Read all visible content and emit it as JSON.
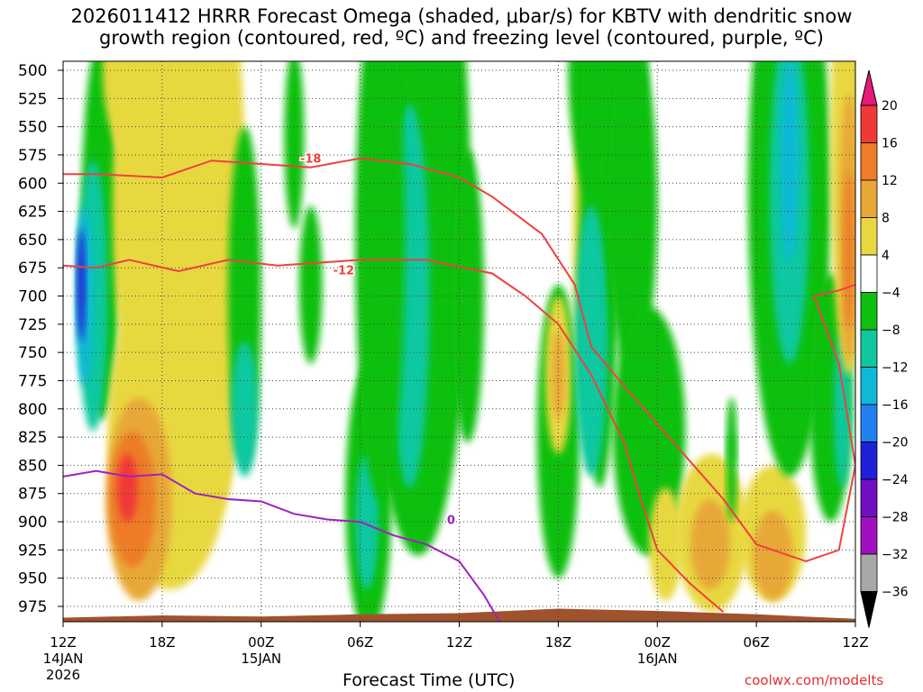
{
  "title": {
    "line1": "2026011412 HRRR Forecast Omega (shaded, μbar/s) for KBTV with dendritic snow",
    "line2": "growth region (contoured, red, ºC) and freezing level (contoured, purple, ºC)"
  },
  "xaxis_title": "Forecast Time (UTC)",
  "credit": "coolwx.com/modelts",
  "chart_data": {
    "type": "heatmap",
    "model": "HRRR",
    "init": "2026011412",
    "site": "KBTV",
    "variable": "Omega",
    "units": "μbar/s",
    "x_forecast_hours_range": [
      0,
      48
    ],
    "x_ticks": [
      {
        "hour": 0,
        "label": "12Z",
        "date": "14JAN",
        "year": "2026"
      },
      {
        "hour": 6,
        "label": "18Z"
      },
      {
        "hour": 12,
        "label": "00Z",
        "date": "15JAN"
      },
      {
        "hour": 18,
        "label": "06Z"
      },
      {
        "hour": 24,
        "label": "12Z"
      },
      {
        "hour": 30,
        "label": "18Z"
      },
      {
        "hour": 36,
        "label": "00Z",
        "date": "16JAN"
      },
      {
        "hour": 42,
        "label": "06Z"
      },
      {
        "hour": 48,
        "label": "12Z"
      }
    ],
    "y_pressure_levels_hPa": [
      500,
      525,
      550,
      575,
      600,
      625,
      650,
      675,
      700,
      725,
      750,
      775,
      800,
      825,
      850,
      875,
      900,
      925,
      950,
      975
    ],
    "y_range_hPa": [
      500,
      990
    ],
    "colorbar": {
      "levels": [
        20,
        16,
        12,
        8,
        4,
        -4,
        -8,
        -12,
        -16,
        -20,
        -24,
        -28,
        -32,
        -36
      ],
      "label_values": [
        "20",
        "16",
        "12",
        "8",
        "4",
        "−4",
        "−8",
        "−12",
        "−16",
        "−20",
        "−24",
        "−28",
        "−32",
        "−36"
      ],
      "colors": [
        "#e8187a",
        "#f03838",
        "#ee7c28",
        "#e8a838",
        "#e8d840",
        "#ffffff",
        "#10c010",
        "#10c8a0",
        "#10b8d8",
        "#2080f0",
        "#2020d8",
        "#7010c0",
        "#a010c0",
        "#a8a8a8",
        "#000000"
      ]
    },
    "terrain_color": "#a0522d",
    "contours": [
      {
        "label": "-18",
        "color": "#f04040",
        "points": [
          [
            0,
            592
          ],
          [
            2,
            592
          ],
          [
            6,
            595
          ],
          [
            9,
            580
          ],
          [
            12,
            583
          ],
          [
            15,
            586
          ],
          [
            18,
            578
          ],
          [
            21,
            583
          ],
          [
            24,
            595
          ],
          [
            26,
            612
          ],
          [
            29,
            645
          ],
          [
            31,
            690
          ],
          [
            32,
            745
          ],
          [
            34,
            780
          ],
          [
            37,
            830
          ],
          [
            40,
            880
          ],
          [
            42,
            920
          ],
          [
            45,
            935
          ],
          [
            47,
            925
          ],
          [
            48,
            850
          ]
        ]
      },
      {
        "label": "-12",
        "color": "#f04040",
        "points": [
          [
            0,
            673
          ],
          [
            2,
            675
          ],
          [
            4,
            668
          ],
          [
            7,
            678
          ],
          [
            10,
            668
          ],
          [
            13,
            673
          ],
          [
            18,
            668
          ],
          [
            22,
            668
          ],
          [
            26,
            680
          ],
          [
            28,
            700
          ],
          [
            30,
            725
          ],
          [
            32,
            770
          ],
          [
            34,
            830
          ],
          [
            35,
            880
          ],
          [
            36,
            925
          ],
          [
            38,
            955
          ],
          [
            40,
            980
          ]
        ]
      },
      {
        "label": "-12",
        "color": "#f04040",
        "points": [
          [
            45.5,
            700
          ],
          [
            47,
            695
          ],
          [
            48,
            690
          ]
        ]
      },
      {
        "label": "-18",
        "color": "#f04040",
        "points": [
          [
            45.5,
            700
          ],
          [
            47,
            760
          ],
          [
            48,
            850
          ]
        ]
      },
      {
        "label": "0",
        "color": "#a020c0",
        "points": [
          [
            0,
            860
          ],
          [
            2,
            855
          ],
          [
            4,
            860
          ],
          [
            6,
            858
          ],
          [
            8,
            875
          ],
          [
            10,
            880
          ],
          [
            12,
            882
          ],
          [
            14,
            893
          ],
          [
            16,
            898
          ],
          [
            18,
            900
          ],
          [
            20,
            912
          ],
          [
            22,
            920
          ],
          [
            24,
            935
          ],
          [
            25.5,
            965
          ],
          [
            26.5,
            990
          ]
        ]
      }
    ]
  }
}
